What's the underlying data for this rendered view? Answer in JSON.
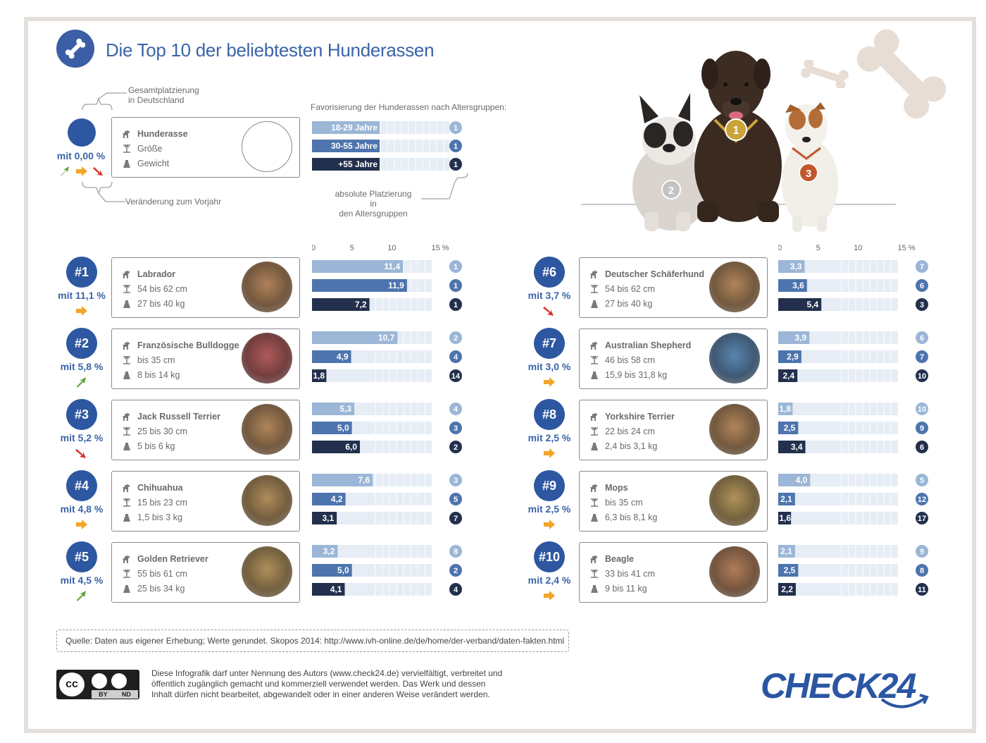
{
  "title": "Die Top 10 der beliebtesten Hunderassen",
  "legend": {
    "rank_label_1": "Gesamtplatzierung",
    "rank_label_2": "in Deutschland",
    "pct_label": "mit 0,00 %",
    "change_label": "Veränderung zum Vorjahr",
    "card_name": "Hunderasse",
    "card_size": "Größe",
    "card_weight": "Gewicht",
    "fav_title": "Favorisierung der Hunderassen nach Altersgruppen:",
    "age_groups": [
      "18-29 Jahre",
      "30-55 Jahre",
      "+55 Jahre"
    ],
    "age_ranks": [
      "1",
      "1",
      "1"
    ],
    "abs_label_1": "absolute Platzierung in",
    "abs_label_2": "den Altersgruppen"
  },
  "podium_medals": [
    "1",
    "2",
    "3"
  ],
  "colors": {
    "brand": "#2d57a0",
    "light": "#9bb6d6",
    "mid": "#4d74ad",
    "dark": "#22304d",
    "up": "#5fa63a",
    "same": "#f2a52b",
    "down": "#d9322b"
  },
  "chart_data": {
    "type": "bar",
    "xlim": [
      0,
      15
    ],
    "x_ticks": [
      "0",
      "5",
      "10",
      "15 %"
    ],
    "series_names": [
      "18-29 Jahre",
      "30-55 Jahre",
      "+55 Jahre"
    ],
    "breeds": [
      {
        "rank": "#1",
        "pct": "mit 11,1 %",
        "trend": "same",
        "name": "Labrador",
        "size": "54 bis 62 cm",
        "weight": "27 bis 40 kg",
        "values": [
          11.4,
          11.9,
          7.2
        ],
        "labels": [
          "11,4",
          "11,9",
          "7,2"
        ],
        "ranks": [
          "1",
          "1",
          "1"
        ]
      },
      {
        "rank": "#2",
        "pct": "mit 5,8 %",
        "trend": "up",
        "name": "Französische Bulldogge",
        "size": "bis 35 cm",
        "weight": "8 bis 14 kg",
        "values": [
          10.7,
          4.9,
          1.8
        ],
        "labels": [
          "10,7",
          "4,9",
          "1,8"
        ],
        "ranks": [
          "2",
          "4",
          "14"
        ]
      },
      {
        "rank": "#3",
        "pct": "mit 5,2 %",
        "trend": "down",
        "name": "Jack Russell Terrier",
        "size": "25 bis 30 cm",
        "weight": "5 bis 6 kg",
        "values": [
          5.3,
          5.0,
          6.0
        ],
        "labels": [
          "5,3",
          "5,0",
          "6,0"
        ],
        "ranks": [
          "4",
          "3",
          "2"
        ]
      },
      {
        "rank": "#4",
        "pct": "mit 4,8 %",
        "trend": "same",
        "name": "Chihuahua",
        "size": "15 bis 23 cm",
        "weight": "1,5 bis 3 kg",
        "values": [
          7.6,
          4.2,
          3.1
        ],
        "labels": [
          "7,6",
          "4,2",
          "3,1"
        ],
        "ranks": [
          "3",
          "5",
          "7"
        ]
      },
      {
        "rank": "#5",
        "pct": "mit 4,5 %",
        "trend": "up",
        "name": "Golden Retriever",
        "size": "55 bis 61 cm",
        "weight": "25 bis 34 kg",
        "values": [
          3.2,
          5.0,
          4.1
        ],
        "labels": [
          "3,2",
          "5,0",
          "4,1"
        ],
        "ranks": [
          "8",
          "2",
          "4"
        ]
      },
      {
        "rank": "#6",
        "pct": "mit 3,7 %",
        "trend": "down",
        "name": "Deutscher Schäferhund",
        "size": "54 bis 62 cm",
        "weight": "27 bis 40 kg",
        "values": [
          3.3,
          3.6,
          5.4
        ],
        "labels": [
          "3,3",
          "3,6",
          "5,4"
        ],
        "ranks": [
          "7",
          "6",
          "3"
        ]
      },
      {
        "rank": "#7",
        "pct": "mit 3,0 %",
        "trend": "same",
        "name": "Australian Shepherd",
        "size": "46 bis 58 cm",
        "weight": "15,9 bis 31,8 kg",
        "values": [
          3.9,
          2.9,
          2.4
        ],
        "labels": [
          "3,9",
          "2,9",
          "2,4"
        ],
        "ranks": [
          "6",
          "7",
          "10"
        ]
      },
      {
        "rank": "#8",
        "pct": "mit 2,5 %",
        "trend": "same",
        "name": "Yorkshire Terrier",
        "size": "22 bis 24 cm",
        "weight": "2,4 bis 3,1 kg",
        "values": [
          1.8,
          2.5,
          3.4
        ],
        "labels": [
          "1,8",
          "2,5",
          "3,4"
        ],
        "ranks": [
          "10",
          "9",
          "6"
        ]
      },
      {
        "rank": "#9",
        "pct": "mit 2,5 %",
        "trend": "same",
        "name": "Mops",
        "size": "bis 35 cm",
        "weight": "6,3 bis 8,1 kg",
        "values": [
          4.0,
          2.1,
          1.6
        ],
        "labels": [
          "4,0",
          "2,1",
          "1,6"
        ],
        "ranks": [
          "5",
          "12",
          "17"
        ]
      },
      {
        "rank": "#10",
        "pct": "mit 2,4 %",
        "trend": "same",
        "name": "Beagle",
        "size": "33 bis 41 cm",
        "weight": "9 bis 11 kg",
        "values": [
          2.1,
          2.5,
          2.2
        ],
        "labels": [
          "2,1",
          "2,5",
          "2,2"
        ],
        "ranks": [
          "9",
          "8",
          "11"
        ]
      }
    ]
  },
  "footer": {
    "source": "Quelle: Daten aus eigener Erhebung; Werte gerundet. Skopos 2014: http://www.ivh-online.de/de/home/der-verband/daten-fakten.html",
    "legal_1": "Diese Infografik darf unter Nennung des Autors (www.check24.de) vervielfältigt, verbreitet und",
    "legal_2": "öffentlich zugänglich gemacht und kommerziell verwendet werden. Das Werk und dessen",
    "legal_3": "Inhalt dürfen nicht bearbeitet, abgewandelt oder in einer anderen Weise verändert werden.",
    "cc_by": "BY",
    "cc_nd": "ND",
    "brand": "CHECK24"
  }
}
